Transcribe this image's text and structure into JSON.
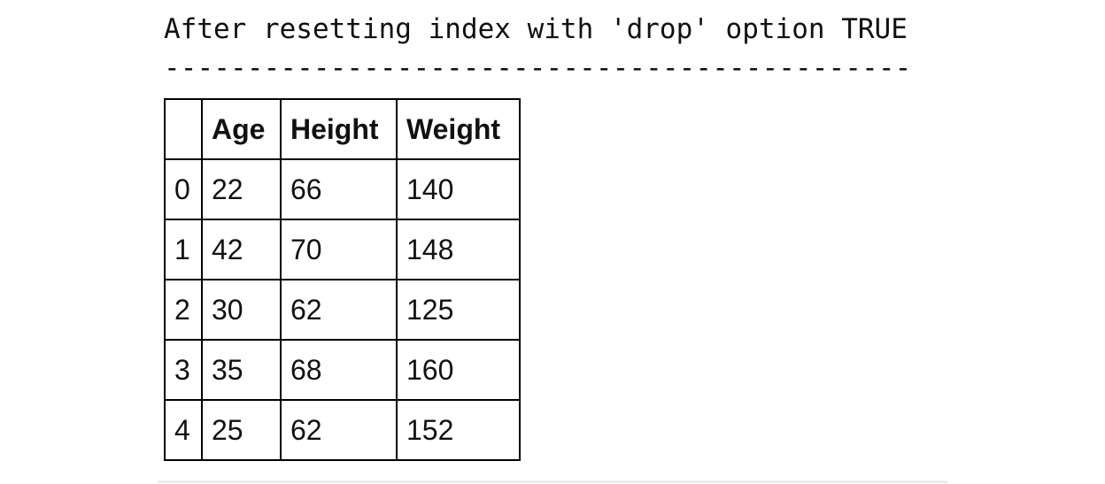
{
  "output": {
    "title": "After resetting index with 'drop' option TRUE",
    "separator": "---------------------------------------------"
  },
  "table": {
    "index_header": "",
    "columns": [
      "Age",
      "Height",
      "Weight"
    ],
    "rows": [
      {
        "index": "0",
        "values": [
          "22",
          "66",
          "140"
        ]
      },
      {
        "index": "1",
        "values": [
          "42",
          "70",
          "148"
        ]
      },
      {
        "index": "2",
        "values": [
          "30",
          "62",
          "125"
        ]
      },
      {
        "index": "3",
        "values": [
          "35",
          "68",
          "160"
        ]
      },
      {
        "index": "4",
        "values": [
          "25",
          "62",
          "152"
        ]
      }
    ]
  }
}
